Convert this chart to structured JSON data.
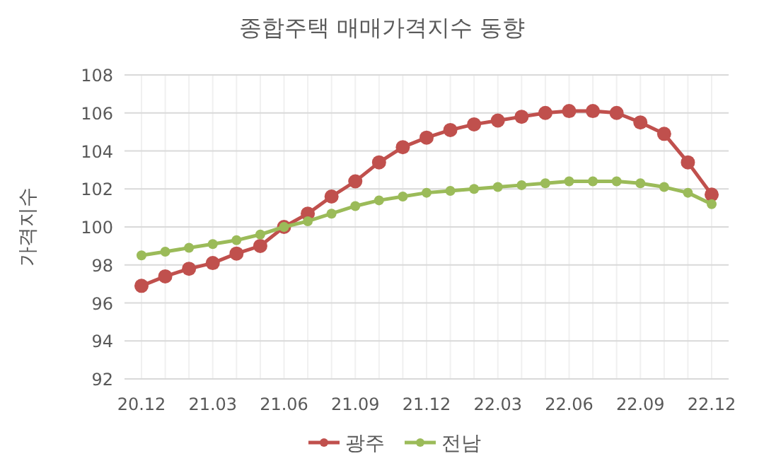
{
  "chart_data": {
    "type": "line",
    "title": "종합주택 매매가격지수 동향",
    "ylabel": "가격지수",
    "categories": [
      "20.12",
      null,
      null,
      "21.03",
      null,
      null,
      "21.06",
      null,
      null,
      "21.09",
      null,
      null,
      "21.12",
      null,
      null,
      "22.03",
      null,
      null,
      "22.06",
      null,
      null,
      "22.09",
      null,
      null,
      "22.12"
    ],
    "series": [
      {
        "name": "광주",
        "color": "#c0504d",
        "values": [
          96.9,
          97.4,
          97.8,
          98.1,
          98.6,
          99.0,
          100.0,
          100.7,
          101.6,
          102.4,
          103.4,
          104.2,
          104.7,
          105.1,
          105.4,
          105.6,
          105.8,
          106.0,
          106.1,
          106.1,
          106.0,
          105.5,
          104.9,
          103.4,
          101.7
        ]
      },
      {
        "name": "전남",
        "color": "#9bbb59",
        "values": [
          98.5,
          98.7,
          98.9,
          99.1,
          99.3,
          99.6,
          100.0,
          100.3,
          100.7,
          101.1,
          101.4,
          101.6,
          101.8,
          101.9,
          102.0,
          102.1,
          102.2,
          102.3,
          102.4,
          102.4,
          102.4,
          102.3,
          102.1,
          101.8,
          101.2
        ]
      }
    ],
    "ylim": [
      92,
      108
    ],
    "yticks": [
      92,
      94,
      96,
      98,
      100,
      102,
      104,
      106,
      108
    ],
    "grid": true,
    "legend": "bottom",
    "marker": "circle",
    "line_style": "solid"
  }
}
